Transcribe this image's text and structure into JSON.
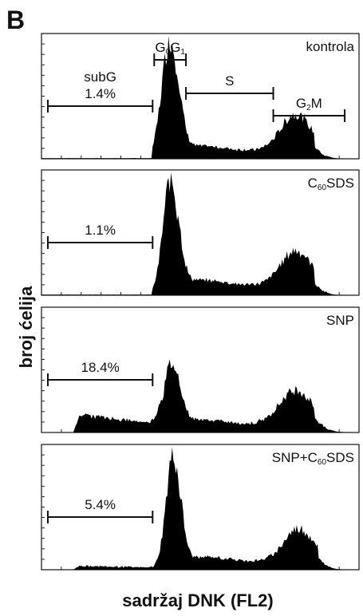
{
  "figure": {
    "panel_letter": "B",
    "ylabel": "broj ćelija",
    "xlabel": "sadržaj DNK (FL2)"
  },
  "chart_data": [
    {
      "type": "area",
      "label": "kontrola",
      "gates": [
        {
          "name": "subG",
          "value": "1.4%",
          "x_range": [
            0.02,
            0.35
          ]
        },
        {
          "name": "G0G1",
          "x_range": [
            0.355,
            0.455
          ]
        },
        {
          "name": "S",
          "x_range": [
            0.455,
            0.73
          ]
        },
        {
          "name": "G2M",
          "x_range": [
            0.73,
            0.955
          ]
        }
      ],
      "peaks": {
        "base": 0.005,
        "g1_pos": 0.405,
        "g1_height": 0.96,
        "g1_width": 0.026,
        "s_level": 0.1,
        "g2_pos": 0.8,
        "g2_height": 0.26,
        "g2_width": 0.045,
        "subg_level": 0.0
      }
    },
    {
      "type": "area",
      "label": "C60SDS",
      "gates": [
        {
          "name": "subG",
          "value": "1.1%",
          "x_range": [
            0.02,
            0.35
          ]
        }
      ],
      "peaks": {
        "base": 0.005,
        "g1_pos": 0.407,
        "g1_height": 0.93,
        "g1_width": 0.024,
        "s_level": 0.12,
        "g2_pos": 0.8,
        "g2_height": 0.24,
        "g2_width": 0.045,
        "subg_level": 0.0
      }
    },
    {
      "type": "area",
      "label": "SNP",
      "gates": [
        {
          "name": "subG",
          "value": "18.4%",
          "x_range": [
            0.02,
            0.35
          ]
        }
      ],
      "peaks": {
        "base": 0.0,
        "g1_pos": 0.41,
        "g1_height": 0.55,
        "g1_width": 0.025,
        "s_level": 0.1,
        "g2_pos": 0.8,
        "g2_height": 0.24,
        "g2_width": 0.05,
        "subg_level": 0.18
      }
    },
    {
      "type": "area",
      "label": "SNP+C60SDS",
      "gates": [
        {
          "name": "subG",
          "value": "5.4%",
          "x_range": [
            0.02,
            0.35
          ]
        }
      ],
      "peaks": {
        "base": 0.0,
        "g1_pos": 0.415,
        "g1_height": 0.93,
        "g1_width": 0.022,
        "s_level": 0.1,
        "g2_pos": 0.81,
        "g2_height": 0.23,
        "g2_width": 0.045,
        "subg_level": 0.04
      }
    }
  ]
}
